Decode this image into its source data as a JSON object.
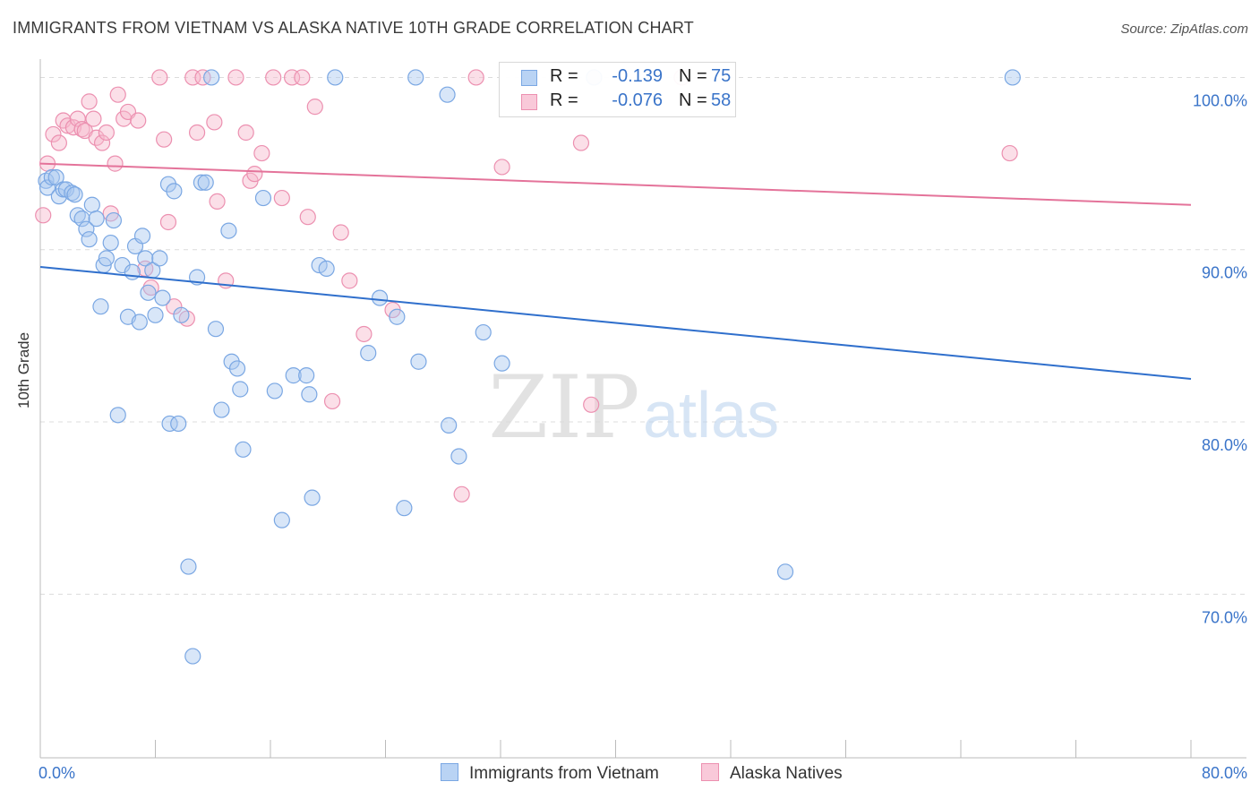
{
  "title": "IMMIGRANTS FROM VIETNAM VS ALASKA NATIVE 10TH GRADE CORRELATION CHART",
  "source": "Source: ZipAtlas.com",
  "watermark": {
    "zip": "ZIP",
    "atlas": "atlas"
  },
  "legend": {
    "r_label": "R =",
    "n_label": "N =",
    "series": [
      {
        "r": "-0.139",
        "n": "75"
      },
      {
        "r": "-0.076",
        "n": "58"
      }
    ]
  },
  "bottom_legend": [
    "Immigrants from Vietnam",
    "Alaska Natives"
  ],
  "colors": {
    "blue_fill": "#a9c8f0",
    "blue_stroke": "#7aa7e3",
    "blue_line": "#2f6fcc",
    "pink_fill": "#f6b7cc",
    "pink_stroke": "#ec90b0",
    "pink_line": "#e4739a",
    "tick_label": "#3a74c9",
    "grid": "#dcdcdc"
  },
  "chart_data": {
    "type": "scatter",
    "ylabel": "10th Grade",
    "xlim": [
      0,
      80
    ],
    "ylim": [
      60.5,
      102
    ],
    "x_tick_labels": [
      {
        "value": 0,
        "label": "0.0%"
      },
      {
        "value": 80,
        "label": "80.0%"
      }
    ],
    "y_tick_labels": [
      {
        "value": 100,
        "label": "100.0%"
      },
      {
        "value": 90,
        "label": "90.0%"
      },
      {
        "value": 80,
        "label": "80.0%"
      },
      {
        "value": 70,
        "label": "70.0%"
      }
    ],
    "grid": true,
    "series": [
      {
        "name": "Immigrants from Vietnam",
        "r": -0.139,
        "n": 75,
        "trend": {
          "x": [
            0,
            80
          ],
          "y": [
            89.0,
            82.5
          ]
        },
        "points": [
          [
            0.4,
            94.0
          ],
          [
            0.5,
            93.6
          ],
          [
            0.8,
            94.2
          ],
          [
            1.1,
            94.2
          ],
          [
            1.3,
            93.1
          ],
          [
            1.6,
            93.5
          ],
          [
            1.8,
            93.5
          ],
          [
            2.2,
            93.3
          ],
          [
            2.4,
            93.2
          ],
          [
            2.6,
            92.0
          ],
          [
            2.9,
            91.8
          ],
          [
            3.2,
            91.2
          ],
          [
            3.4,
            90.6
          ],
          [
            3.6,
            92.6
          ],
          [
            3.9,
            91.8
          ],
          [
            4.2,
            86.7
          ],
          [
            4.4,
            89.1
          ],
          [
            4.6,
            89.5
          ],
          [
            4.9,
            90.4
          ],
          [
            5.1,
            91.7
          ],
          [
            5.4,
            80.4
          ],
          [
            5.7,
            89.1
          ],
          [
            6.1,
            86.1
          ],
          [
            6.4,
            88.7
          ],
          [
            6.6,
            90.2
          ],
          [
            6.9,
            85.8
          ],
          [
            7.1,
            90.8
          ],
          [
            7.3,
            89.5
          ],
          [
            7.5,
            87.5
          ],
          [
            7.8,
            88.8
          ],
          [
            8.0,
            86.2
          ],
          [
            8.3,
            89.5
          ],
          [
            8.5,
            87.2
          ],
          [
            8.9,
            93.8
          ],
          [
            9.0,
            79.9
          ],
          [
            9.3,
            93.4
          ],
          [
            9.6,
            79.9
          ],
          [
            9.8,
            86.2
          ],
          [
            10.3,
            71.6
          ],
          [
            10.6,
            66.4
          ],
          [
            10.9,
            88.4
          ],
          [
            11.2,
            93.9
          ],
          [
            11.5,
            93.9
          ],
          [
            11.9,
            100.0
          ],
          [
            12.2,
            85.4
          ],
          [
            12.6,
            80.7
          ],
          [
            13.1,
            91.1
          ],
          [
            13.3,
            83.5
          ],
          [
            13.7,
            83.1
          ],
          [
            13.9,
            81.9
          ],
          [
            14.1,
            78.4
          ],
          [
            15.5,
            93.0
          ],
          [
            16.3,
            81.8
          ],
          [
            16.8,
            74.3
          ],
          [
            17.6,
            82.7
          ],
          [
            18.5,
            82.7
          ],
          [
            18.7,
            81.6
          ],
          [
            18.9,
            75.6
          ],
          [
            19.4,
            89.1
          ],
          [
            19.9,
            88.9
          ],
          [
            20.5,
            100.0
          ],
          [
            22.8,
            84.0
          ],
          [
            23.6,
            87.2
          ],
          [
            24.8,
            86.1
          ],
          [
            25.3,
            75.0
          ],
          [
            26.1,
            100.0
          ],
          [
            26.3,
            83.5
          ],
          [
            28.3,
            99.0
          ],
          [
            28.4,
            79.8
          ],
          [
            29.1,
            78.0
          ],
          [
            30.8,
            85.2
          ],
          [
            32.1,
            83.4
          ],
          [
            51.8,
            71.3
          ],
          [
            67.6,
            100.0
          ],
          [
            38.5,
            100.0
          ]
        ]
      },
      {
        "name": "Alaska Natives",
        "r": -0.076,
        "n": 58,
        "trend": {
          "x": [
            0,
            80
          ],
          "y": [
            95.0,
            92.6
          ]
        },
        "points": [
          [
            0.2,
            92.0
          ],
          [
            0.5,
            95.0
          ],
          [
            0.9,
            96.7
          ],
          [
            1.3,
            96.2
          ],
          [
            1.6,
            97.5
          ],
          [
            1.9,
            97.2
          ],
          [
            2.3,
            97.1
          ],
          [
            2.6,
            97.6
          ],
          [
            2.9,
            97.0
          ],
          [
            3.1,
            96.9
          ],
          [
            3.4,
            98.6
          ],
          [
            3.7,
            97.6
          ],
          [
            3.9,
            96.5
          ],
          [
            4.3,
            96.2
          ],
          [
            4.6,
            96.8
          ],
          [
            4.9,
            92.1
          ],
          [
            5.2,
            95.0
          ],
          [
            5.4,
            99.0
          ],
          [
            5.8,
            97.6
          ],
          [
            6.1,
            98.0
          ],
          [
            6.8,
            97.5
          ],
          [
            7.3,
            88.9
          ],
          [
            7.7,
            87.8
          ],
          [
            8.3,
            100.0
          ],
          [
            8.6,
            96.4
          ],
          [
            8.9,
            91.6
          ],
          [
            9.3,
            86.7
          ],
          [
            10.2,
            86.0
          ],
          [
            10.6,
            100.0
          ],
          [
            10.9,
            96.8
          ],
          [
            11.3,
            100.0
          ],
          [
            12.1,
            97.4
          ],
          [
            12.3,
            92.8
          ],
          [
            12.9,
            88.2
          ],
          [
            13.6,
            100.0
          ],
          [
            14.3,
            96.8
          ],
          [
            14.6,
            94.0
          ],
          [
            14.9,
            94.4
          ],
          [
            15.4,
            95.6
          ],
          [
            16.2,
            100.0
          ],
          [
            16.8,
            93.0
          ],
          [
            17.5,
            100.0
          ],
          [
            18.2,
            100.0
          ],
          [
            18.6,
            91.9
          ],
          [
            19.1,
            98.3
          ],
          [
            20.3,
            81.2
          ],
          [
            20.9,
            91.0
          ],
          [
            21.5,
            88.2
          ],
          [
            22.5,
            85.1
          ],
          [
            24.5,
            86.5
          ],
          [
            29.3,
            75.8
          ],
          [
            30.3,
            100.0
          ],
          [
            32.1,
            94.8
          ],
          [
            37.6,
            96.2
          ],
          [
            38.3,
            81.0
          ],
          [
            38.5,
            100.0
          ],
          [
            44.6,
            100.0
          ],
          [
            67.4,
            95.6
          ]
        ]
      }
    ]
  }
}
